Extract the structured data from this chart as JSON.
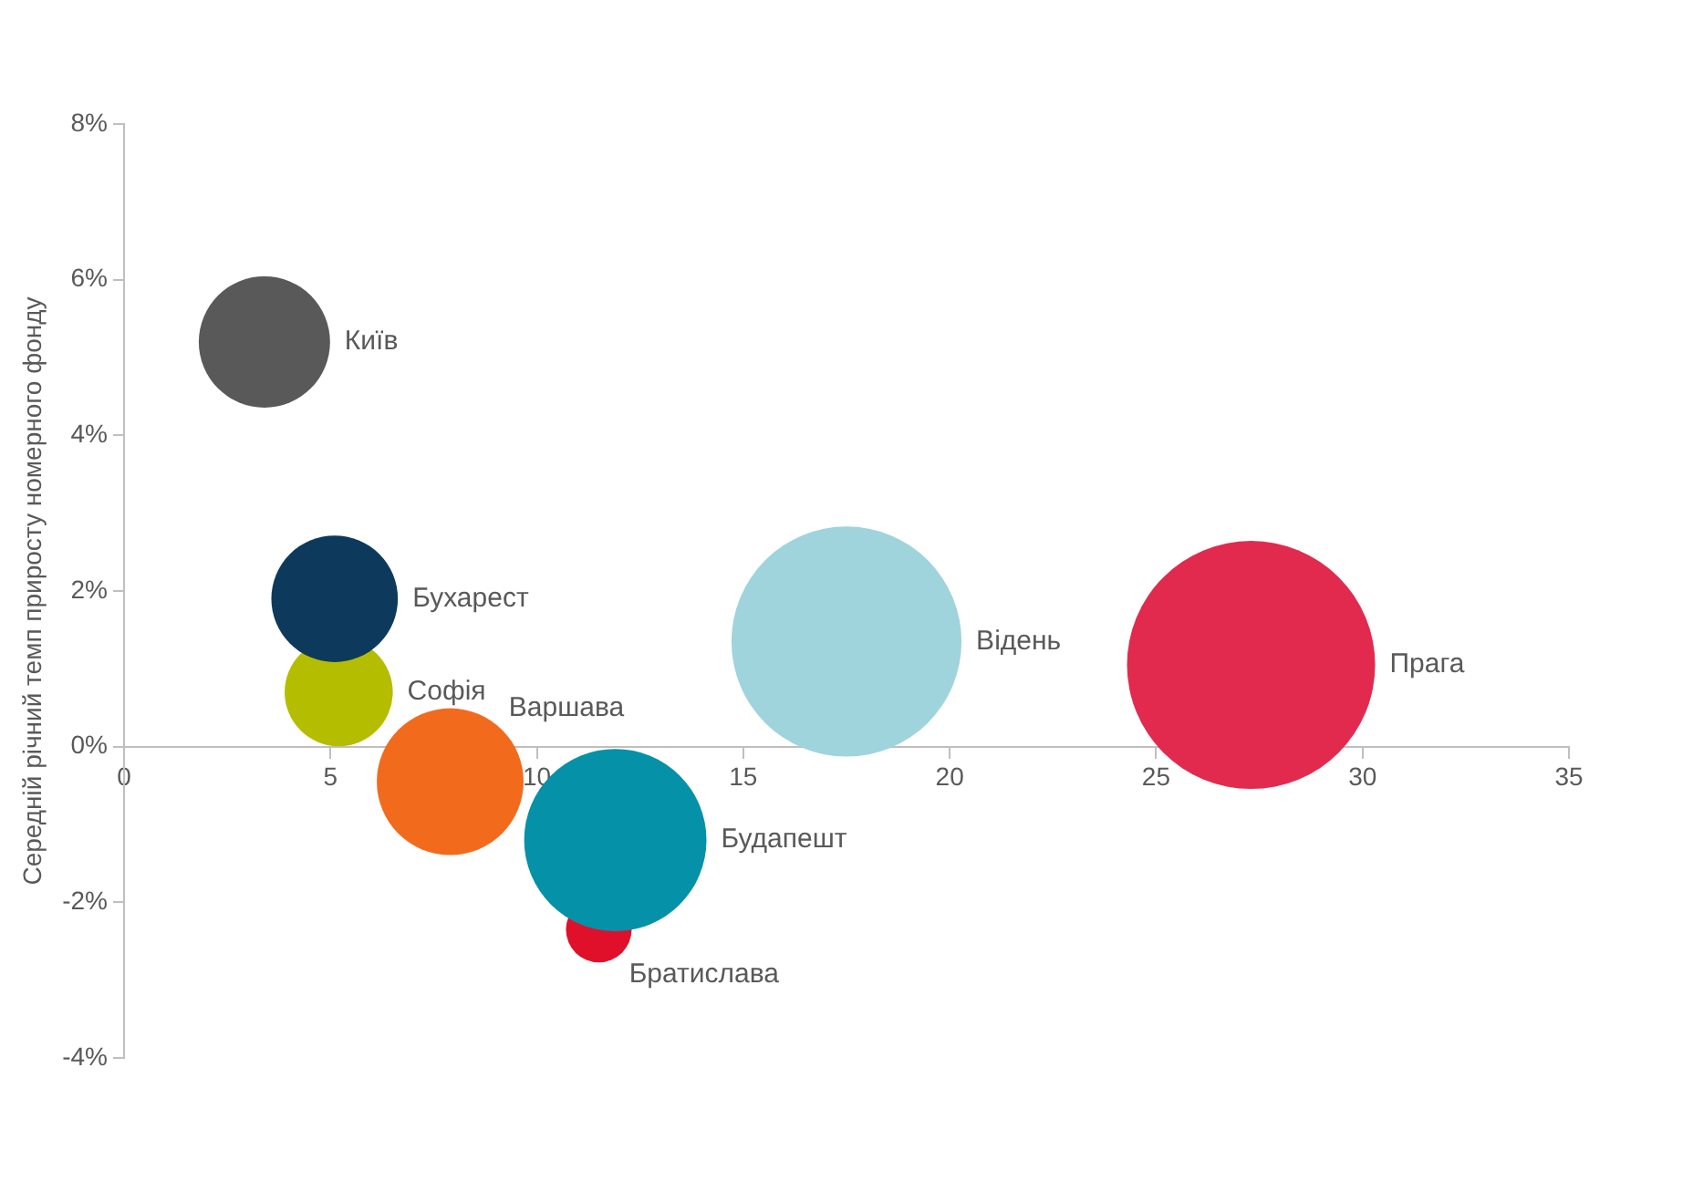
{
  "chart_data": {
    "type": "bubble",
    "ylabel": "Середній річний темп приросту номерного фонду",
    "xlim": [
      0,
      35
    ],
    "xticks": [
      0,
      5,
      10,
      15,
      20,
      25,
      30,
      35
    ],
    "ylim": [
      -4,
      8
    ],
    "yticks": [
      {
        "value": -4,
        "label": "-4%"
      },
      {
        "value": -2,
        "label": "-2%"
      },
      {
        "value": 0,
        "label": "0%"
      },
      {
        "value": 2,
        "label": "2%"
      },
      {
        "value": 4,
        "label": "4%"
      },
      {
        "value": 6,
        "label": "6%"
      },
      {
        "value": 8,
        "label": "8%"
      }
    ],
    "grid": false,
    "legend": false,
    "series": [
      {
        "name": "Київ",
        "color": "#595959",
        "x": [
          3.4
        ],
        "values": [
          5.2
        ],
        "sizes": [
          0.28
        ]
      },
      {
        "name": "Бухарест",
        "color": "#0d3a5c",
        "x": [
          5.1
        ],
        "values": [
          1.9
        ],
        "sizes": [
          0.26
        ]
      },
      {
        "name": "Софія",
        "color": "#b5bd00",
        "x": [
          5.2
        ],
        "values": [
          0.7
        ],
        "sizes": [
          0.19
        ]
      },
      {
        "name": "Варшава",
        "color": "#f26b1d",
        "x": [
          7.9
        ],
        "values": [
          -0.45
        ],
        "sizes": [
          0.35
        ]
      },
      {
        "name": "Будапешт",
        "color": "#0591a8",
        "x": [
          11.9
        ],
        "values": [
          -1.2
        ],
        "sizes": [
          0.54
        ]
      },
      {
        "name": "Братислава",
        "color": "#e0102a",
        "x": [
          11.5
        ],
        "values": [
          -2.35
        ],
        "sizes": [
          0.07
        ]
      },
      {
        "name": "Відень",
        "color": "#9fd4dc",
        "x": [
          17.5
        ],
        "values": [
          1.35
        ],
        "sizes": [
          0.86
        ]
      },
      {
        "name": "Прага",
        "color": "#e22a4e",
        "x": [
          27.3
        ],
        "values": [
          1.05
        ],
        "sizes": [
          1
        ]
      }
    ]
  }
}
